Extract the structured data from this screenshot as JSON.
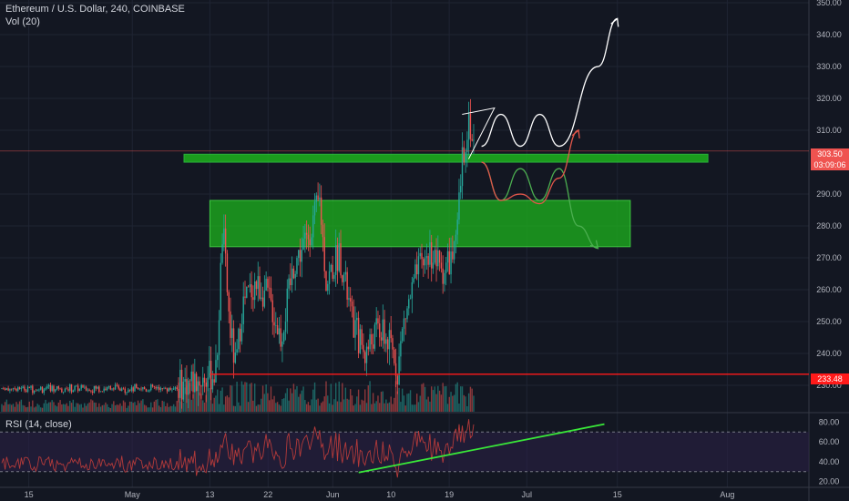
{
  "header": {
    "symbol_line": "Ethereum / U.S. Dollar, 240, COINBASE",
    "volume_label": "Vol (20)",
    "rsi_label": "RSI (14, close)"
  },
  "colors": {
    "background": "#131722",
    "candle_up": "#26a69a",
    "candle_down": "#ef5350",
    "zone_fill": "#1db31d",
    "resistance_line": "#ff1a1a",
    "rsi_line": "#b33a3a",
    "rsi_band": "#2a1f45",
    "trendline": "#39e639",
    "projection_white": "#ffffff",
    "projection_green": "#4caf50",
    "projection_red": "#e0564a"
  },
  "price_axis": {
    "ticks": [
      "350.00",
      "340.00",
      "330.00",
      "320.00",
      "310.00",
      "290.00",
      "280.00",
      "270.00",
      "260.00",
      "250.00",
      "240.00",
      "230.00"
    ],
    "range": [
      227,
      350
    ]
  },
  "rsi_axis": {
    "ticks": [
      "80.00",
      "60.00",
      "40.00",
      "20.00"
    ],
    "range": [
      15,
      85
    ],
    "bands": [
      30,
      70
    ]
  },
  "time_axis": {
    "labels": [
      "15",
      "May",
      "13",
      "22",
      "Jun",
      "10",
      "19",
      "Jul",
      "15",
      "Aug"
    ]
  },
  "tags": {
    "last_price": "303.50",
    "countdown": "03:09:06",
    "level": "233.48"
  },
  "chart_data": {
    "type": "candlestick",
    "title": "Ethereum / U.S. Dollar, 240, COINBASE",
    "price_path": [
      {
        "date": "May 08",
        "price": 230
      },
      {
        "date": "May 12",
        "price": 232
      },
      {
        "date": "May 14",
        "price": 234
      },
      {
        "date": "May 15",
        "price": 280
      },
      {
        "date": "May 16",
        "price": 250
      },
      {
        "date": "May 17",
        "price": 235
      },
      {
        "date": "May 18",
        "price": 255
      },
      {
        "date": "May 20",
        "price": 262
      },
      {
        "date": "May 22",
        "price": 258
      },
      {
        "date": "May 24",
        "price": 245
      },
      {
        "date": "May 26",
        "price": 268
      },
      {
        "date": "May 28",
        "price": 276
      },
      {
        "date": "May 30",
        "price": 288
      },
      {
        "date": "May 31",
        "price": 262
      },
      {
        "date": "Jun 02",
        "price": 272
      },
      {
        "date": "Jun 04",
        "price": 250
      },
      {
        "date": "Jun 06",
        "price": 240
      },
      {
        "date": "Jun 08",
        "price": 248
      },
      {
        "date": "Jun 10",
        "price": 242
      },
      {
        "date": "Jun 11",
        "price": 235
      },
      {
        "date": "Jun 12",
        "price": 250
      },
      {
        "date": "Jun 14",
        "price": 265
      },
      {
        "date": "Jun 16",
        "price": 272
      },
      {
        "date": "Jun 18",
        "price": 266
      },
      {
        "date": "Jun 20",
        "price": 272
      },
      {
        "date": "Jun 21",
        "price": 300
      },
      {
        "date": "Jun 22",
        "price": 314
      },
      {
        "date": "Jun 23",
        "price": 303.5
      }
    ],
    "levels": {
      "resistance": 233.48,
      "last_price": 303.5,
      "upper_zone": [
        300,
        302.5
      ],
      "lower_zone": [
        273.5,
        288
      ]
    },
    "rsi": {
      "overbought": 70,
      "oversold": 30,
      "trendline_from": {
        "date": "Jun 05",
        "value": 29
      },
      "trendline_to": {
        "date": "Jul 13",
        "value": 78
      },
      "last_value": 62
    },
    "projections": {
      "white": [
        {
          "date": "Jun 24",
          "price": 305
        },
        {
          "date": "Jun 27",
          "price": 315
        },
        {
          "date": "Jun 30",
          "price": 305
        },
        {
          "date": "Jul 03",
          "price": 315
        },
        {
          "date": "Jul 06",
          "price": 305
        },
        {
          "date": "Jul 12",
          "price": 330
        },
        {
          "date": "Jul 15",
          "price": 345
        }
      ],
      "green": [
        {
          "date": "Jun 24",
          "price": 300
        },
        {
          "date": "Jun 27",
          "price": 288
        },
        {
          "date": "Jun 30",
          "price": 298
        },
        {
          "date": "Jul 03",
          "price": 288
        },
        {
          "date": "Jul 06",
          "price": 298
        },
        {
          "date": "Jul 09",
          "price": 280
        },
        {
          "date": "Jul 12",
          "price": 273
        }
      ],
      "red": [
        {
          "date": "Jun 24",
          "price": 300
        },
        {
          "date": "Jun 27",
          "price": 288
        },
        {
          "date": "Jun 30",
          "price": 290
        },
        {
          "date": "Jul 03",
          "price": 287
        },
        {
          "date": "Jul 06",
          "price": 295
        },
        {
          "date": "Jul 09",
          "price": 310
        }
      ]
    }
  }
}
